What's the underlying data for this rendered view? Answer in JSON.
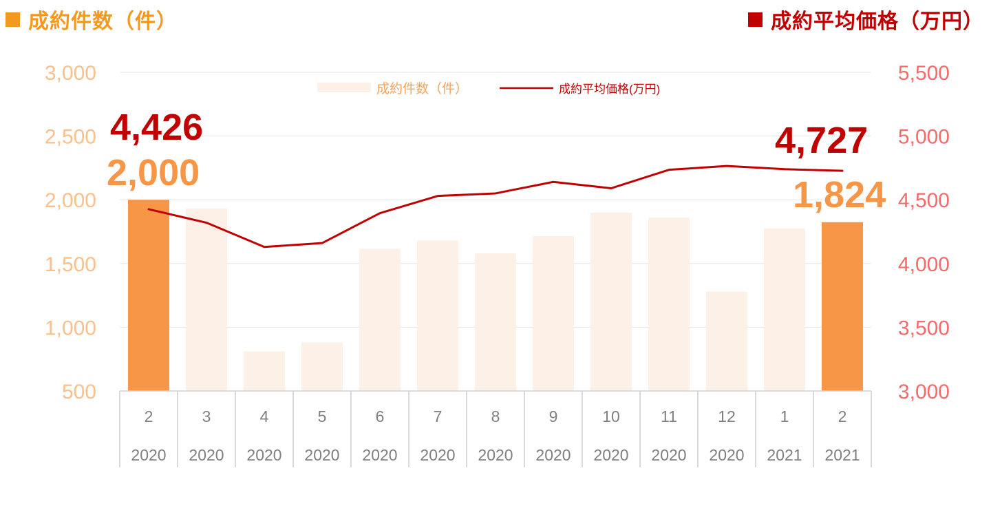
{
  "headers": {
    "left_title": "成約件数（件）",
    "right_title": "成約平均価格（万円）"
  },
  "colors": {
    "bar_highlight": "#f79646",
    "bar_faded": "#fdf0e6",
    "line": "#c00000",
    "left_axis_text": "#f9c08c",
    "right_axis_text": "#f56a6a",
    "left_header": "#f39a1e",
    "right_header": "#c00000",
    "category_text": "#7f7f7f",
    "legend_bar_text": "#f5a25a",
    "legend_line_text": "#c00000",
    "highlight_bar_label": "#f79646",
    "highlight_line_label": "#c00000"
  },
  "chart_data": {
    "type": "bar",
    "categories": [
      {
        "month": "2",
        "year": "2020"
      },
      {
        "month": "3",
        "year": "2020"
      },
      {
        "month": "4",
        "year": "2020"
      },
      {
        "month": "5",
        "year": "2020"
      },
      {
        "month": "6",
        "year": "2020"
      },
      {
        "month": "7",
        "year": "2020"
      },
      {
        "month": "8",
        "year": "2020"
      },
      {
        "month": "9",
        "year": "2020"
      },
      {
        "month": "10",
        "year": "2020"
      },
      {
        "month": "11",
        "year": "2020"
      },
      {
        "month": "12",
        "year": "2020"
      },
      {
        "month": "1",
        "year": "2021"
      },
      {
        "month": "2",
        "year": "2021"
      }
    ],
    "series": [
      {
        "name": "成約件数（件）",
        "type": "bar",
        "axis": "left",
        "values": [
          2000,
          1930,
          810,
          880,
          1615,
          1680,
          1580,
          1715,
          1900,
          1860,
          1280,
          1775,
          1824
        ],
        "highlighted": [
          true,
          false,
          false,
          false,
          false,
          false,
          false,
          false,
          false,
          false,
          false,
          false,
          true
        ]
      },
      {
        "name": "成約平均価格(万円)",
        "type": "line",
        "axis": "right",
        "values": [
          4426,
          4320,
          4130,
          4160,
          4395,
          4530,
          4550,
          4640,
          4590,
          4735,
          4765,
          4740,
          4727
        ]
      }
    ],
    "y_left": {
      "min": 500,
      "max": 3000,
      "ticks": [
        500,
        1000,
        1500,
        2000,
        2500,
        3000
      ],
      "tick_labels": [
        "500",
        "1,000",
        "1,500",
        "2,000",
        "2,500",
        "3,000"
      ]
    },
    "y_right": {
      "min": 3000,
      "max": 5500,
      "ticks": [
        3000,
        3500,
        4000,
        4500,
        5000,
        5500
      ],
      "tick_labels": [
        "3,000",
        "3,500",
        "4,000",
        "4,500",
        "5,000",
        "5,500"
      ]
    },
    "grid": true,
    "legend": {
      "position": "top-center",
      "bar_label": "成約件数（件）",
      "line_label": "成約平均価格(万円)"
    },
    "annotations": {
      "first_price": "4,426",
      "first_count": "2,000",
      "last_price": "4,727",
      "last_count": "1,824"
    }
  }
}
